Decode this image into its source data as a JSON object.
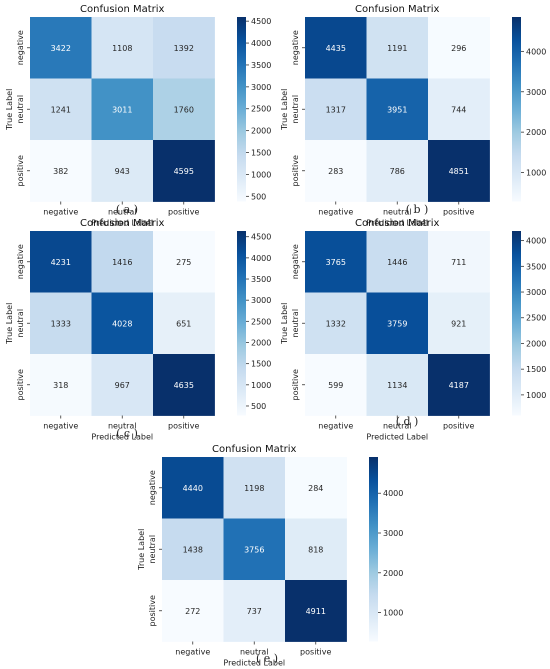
{
  "chart_data": [
    {
      "type": "heatmap",
      "panel": "a",
      "title": "Confusion Matrix",
      "caption": "( a )",
      "xlabel": "Predicted Label",
      "ylabel": "True Label",
      "x_categories": [
        "negative",
        "neutral",
        "positive"
      ],
      "y_categories": [
        "negative",
        "neutral",
        "positive"
      ],
      "values": [
        [
          3422,
          1108,
          1392
        ],
        [
          1241,
          3011,
          1760
        ],
        [
          382,
          943,
          4595
        ]
      ],
      "colorbar": {
        "range": [
          382,
          4595
        ],
        "ticks": [
          500,
          1000,
          1500,
          2000,
          2500,
          3000,
          3500,
          4000,
          4500
        ]
      },
      "colormap": [
        "#f7fbff",
        "#deebf7",
        "#c6dbef",
        "#9ecae1",
        "#6baed6",
        "#4292c6",
        "#2171b5",
        "#08519c",
        "#08306b"
      ]
    },
    {
      "type": "heatmap",
      "panel": "b",
      "title": "Confusion Matrix",
      "caption": "( b )",
      "xlabel": "Predicted Label",
      "ylabel": "True Label",
      "x_categories": [
        "negative",
        "neutral",
        "positive"
      ],
      "y_categories": [
        "negative",
        "neutral",
        "positive"
      ],
      "values": [
        [
          4435,
          1191,
          296
        ],
        [
          1317,
          3951,
          744
        ],
        [
          283,
          786,
          4851
        ]
      ],
      "colorbar": {
        "range": [
          283,
          4851
        ],
        "ticks": [
          1000,
          2000,
          3000,
          4000
        ]
      },
      "colormap": [
        "#f7fbff",
        "#deebf7",
        "#c6dbef",
        "#9ecae1",
        "#6baed6",
        "#4292c6",
        "#2171b5",
        "#08519c",
        "#08306b"
      ]
    },
    {
      "type": "heatmap",
      "panel": "c",
      "title": "Confusion Matrix",
      "caption": "( c )",
      "xlabel": "Predicted Label",
      "ylabel": "True Label",
      "x_categories": [
        "negative",
        "neutral",
        "positive"
      ],
      "y_categories": [
        "negative",
        "neutral",
        "positive"
      ],
      "values": [
        [
          4231,
          1416,
          275
        ],
        [
          1333,
          4028,
          651
        ],
        [
          318,
          967,
          4635
        ]
      ],
      "colorbar": {
        "range": [
          275,
          4635
        ],
        "ticks": [
          500,
          1000,
          1500,
          2000,
          2500,
          3000,
          3500,
          4000,
          4500
        ]
      },
      "colormap": [
        "#f7fbff",
        "#deebf7",
        "#c6dbef",
        "#9ecae1",
        "#6baed6",
        "#4292c6",
        "#2171b5",
        "#08519c",
        "#08306b"
      ]
    },
    {
      "type": "heatmap",
      "panel": "d",
      "title": "Confusion Matrix",
      "caption": "( d )",
      "xlabel": "Predicted Label",
      "ylabel": "True Label",
      "x_categories": [
        "negative",
        "neutral",
        "positive"
      ],
      "y_categories": [
        "negative",
        "neutral",
        "positive"
      ],
      "values": [
        [
          3765,
          1446,
          711
        ],
        [
          1332,
          3759,
          921
        ],
        [
          599,
          1134,
          4187
        ]
      ],
      "colorbar": {
        "range": [
          599,
          4187
        ],
        "ticks": [
          1000,
          1500,
          2000,
          2500,
          3000,
          3500,
          4000
        ]
      },
      "colormap": [
        "#f7fbff",
        "#deebf7",
        "#c6dbef",
        "#9ecae1",
        "#6baed6",
        "#4292c6",
        "#2171b5",
        "#08519c",
        "#08306b"
      ]
    },
    {
      "type": "heatmap",
      "panel": "e",
      "title": "Confusion Matrix",
      "caption": "( e )",
      "xlabel": "Predicted Label",
      "ylabel": "True Label",
      "x_categories": [
        "negative",
        "neutral",
        "positive"
      ],
      "y_categories": [
        "negative",
        "neutral",
        "positive"
      ],
      "values": [
        [
          4440,
          1198,
          284
        ],
        [
          1438,
          3756,
          818
        ],
        [
          272,
          737,
          4911
        ]
      ],
      "colorbar": {
        "range": [
          272,
          4911
        ],
        "ticks": [
          1000,
          2000,
          3000,
          4000
        ]
      },
      "colormap": [
        "#f7fbff",
        "#deebf7",
        "#c6dbef",
        "#9ecae1",
        "#6baed6",
        "#4292c6",
        "#2171b5",
        "#08519c",
        "#08306b"
      ]
    }
  ]
}
